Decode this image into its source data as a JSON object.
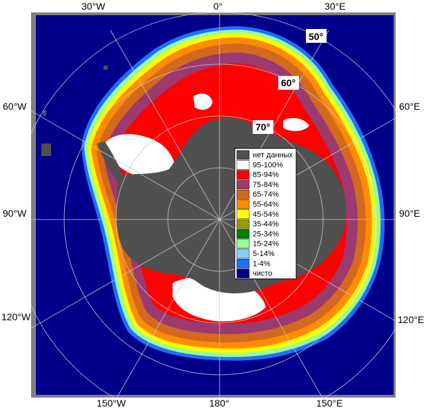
{
  "map": {
    "longitude_labels_top": [
      "30°W",
      "0°",
      "30°E"
    ],
    "longitude_labels_left": [
      "60°W",
      "90°W",
      "120°W"
    ],
    "longitude_labels_right": [
      "60°E",
      "90°E",
      "120°E"
    ],
    "longitude_labels_bottom": [
      "150°W",
      "180°",
      "150°E"
    ],
    "latitude_labels": [
      "50°",
      "60°",
      "70°"
    ],
    "colors": {
      "ocean": "#00008b",
      "land_nodata": "#505050",
      "frame": "#808080"
    }
  },
  "legend": {
    "items": [
      {
        "label": "нет данных",
        "color": "#505050"
      },
      {
        "label": "95-100%",
        "color": "#ffffff"
      },
      {
        "label": "85-94%",
        "color": "#ff0000"
      },
      {
        "label": "75-84%",
        "color": "#9b3a6e"
      },
      {
        "label": "65-74%",
        "color": "#d2691e"
      },
      {
        "label": "55-64%",
        "color": "#ff8c00"
      },
      {
        "label": "45-54%",
        "color": "#ffff00"
      },
      {
        "label": "35-44%",
        "color": "#9a9a00"
      },
      {
        "label": "25-34%",
        "color": "#008000"
      },
      {
        "label": "15-24%",
        "color": "#98fb98"
      },
      {
        "label": "5-14%",
        "color": "#87cefa"
      },
      {
        "label": "1-4%",
        "color": "#1e6fff"
      },
      {
        "label": "чисто",
        "color": "#00008b"
      }
    ]
  }
}
